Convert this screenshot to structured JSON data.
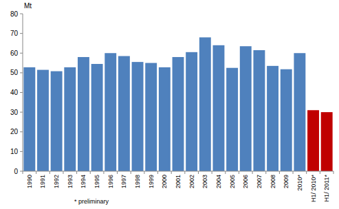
{
  "chart_data": {
    "type": "bar",
    "y_label": "Mt",
    "annotation": "* preliminary",
    "categories": [
      "1990",
      "1991",
      "1992",
      "1993",
      "1994",
      "1995",
      "1996",
      "1997",
      "1998",
      "1999",
      "2000",
      "2001",
      "2002",
      "2003",
      "2004",
      "2005",
      "2006",
      "2007",
      "2008",
      "2009",
      "2010*",
      "H1/ 2010*",
      "H1/ 2011*"
    ],
    "values": [
      52.8,
      51.5,
      50.8,
      52.8,
      58,
      54.5,
      60,
      58.5,
      55.5,
      55,
      52.8,
      58,
      60.5,
      68,
      64,
      52.5,
      63.5,
      61.5,
      53.5,
      51.8,
      60,
      31,
      30
    ],
    "colors": [
      "#4f81bd",
      "#4f81bd",
      "#4f81bd",
      "#4f81bd",
      "#4f81bd",
      "#4f81bd",
      "#4f81bd",
      "#4f81bd",
      "#4f81bd",
      "#4f81bd",
      "#4f81bd",
      "#4f81bd",
      "#4f81bd",
      "#4f81bd",
      "#4f81bd",
      "#4f81bd",
      "#4f81bd",
      "#4f81bd",
      "#4f81bd",
      "#4f81bd",
      "#4f81bd",
      "#c00000",
      "#c00000"
    ],
    "ylim": [
      0,
      80
    ],
    "yticks": [
      0,
      10,
      20,
      30,
      40,
      50,
      60,
      70,
      80
    ],
    "grid": false
  }
}
